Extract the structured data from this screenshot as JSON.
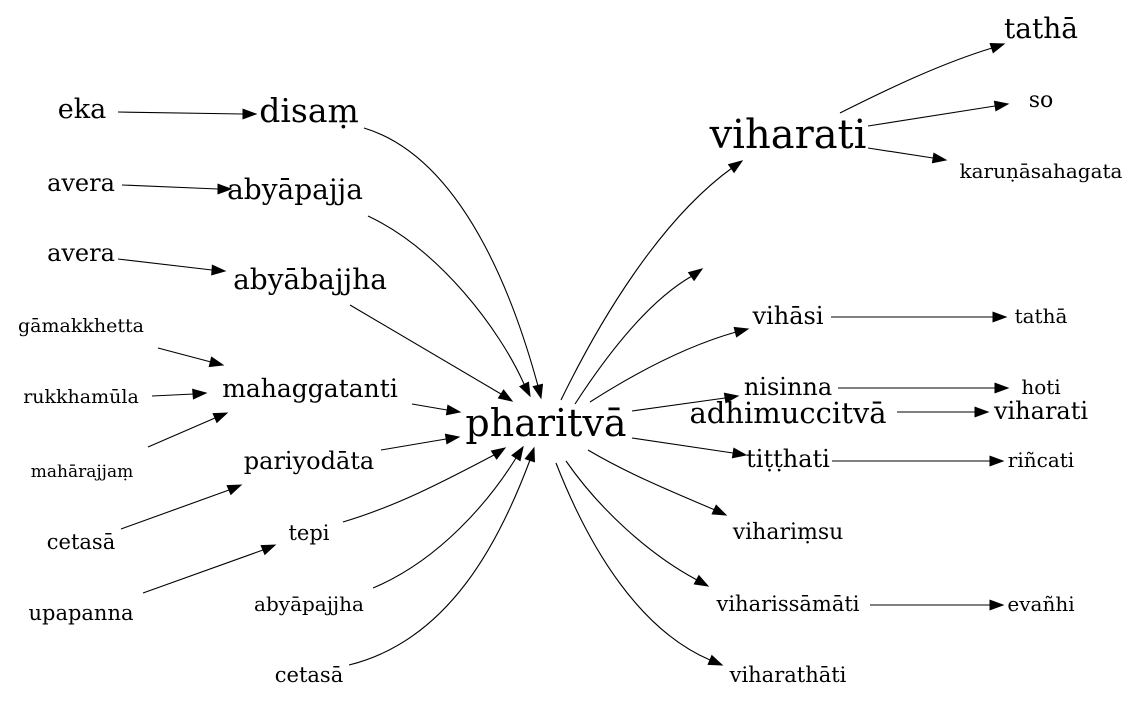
{
  "diagram": {
    "center": "pharitvā",
    "nodes": [
      {
        "id": "pharitva",
        "label": "pharitvā"
      },
      {
        "id": "eka",
        "label": "eka"
      },
      {
        "id": "disam",
        "label": "disaṃ"
      },
      {
        "id": "avera1",
        "label": "avera"
      },
      {
        "id": "abyapajja",
        "label": "abyāpajja"
      },
      {
        "id": "avera2",
        "label": "avera"
      },
      {
        "id": "abyabajjha",
        "label": "abyābajjha"
      },
      {
        "id": "gamakkhetta",
        "label": "gāmakkhetta"
      },
      {
        "id": "rukkhamula",
        "label": "rukkhamūla"
      },
      {
        "id": "maharajjam",
        "label": "mahārajjaṃ"
      },
      {
        "id": "mahaggatanti",
        "label": "mahaggatanti"
      },
      {
        "id": "pariyodata",
        "label": "pariyodāta"
      },
      {
        "id": "cetasa1",
        "label": "cetasā"
      },
      {
        "id": "tepi",
        "label": "tepi"
      },
      {
        "id": "upapanna",
        "label": "upapanna"
      },
      {
        "id": "abyapajjha",
        "label": "abyāpajjha"
      },
      {
        "id": "cetasa2",
        "label": "cetasā"
      },
      {
        "id": "viharati1",
        "label": "viharati"
      },
      {
        "id": "tatha1",
        "label": "tathā"
      },
      {
        "id": "so",
        "label": "so"
      },
      {
        "id": "karuna",
        "label": "karuṇāsahagata"
      },
      {
        "id": "adhimuccitva",
        "label": "adhimuccitvā"
      },
      {
        "id": "viharati2",
        "label": "viharati"
      },
      {
        "id": "vihasi",
        "label": "vihāsi"
      },
      {
        "id": "tatha2",
        "label": "tathā"
      },
      {
        "id": "nisinna",
        "label": "nisinna"
      },
      {
        "id": "hoti",
        "label": "hoti"
      },
      {
        "id": "titthati",
        "label": "tiṭṭhati"
      },
      {
        "id": "rincati",
        "label": "riñcati"
      },
      {
        "id": "viharimsu",
        "label": "vihariṃsu"
      },
      {
        "id": "viharissamati",
        "label": "viharissāmāti"
      },
      {
        "id": "evanhi",
        "label": "evañhi"
      },
      {
        "id": "viharathati",
        "label": "viharathāti"
      }
    ],
    "edges": [
      {
        "from": "eka",
        "to": "disam"
      },
      {
        "from": "avera1",
        "to": "abyapajja"
      },
      {
        "from": "avera2",
        "to": "abyabajjha"
      },
      {
        "from": "gamakkhetta",
        "to": "mahaggatanti"
      },
      {
        "from": "rukkhamula",
        "to": "mahaggatanti"
      },
      {
        "from": "maharajjam",
        "to": "mahaggatanti"
      },
      {
        "from": "cetasa1",
        "to": "pariyodata"
      },
      {
        "from": "upapanna",
        "to": "tepi"
      },
      {
        "from": "disam",
        "to": "pharitva"
      },
      {
        "from": "abyapajja",
        "to": "pharitva"
      },
      {
        "from": "abyabajjha",
        "to": "pharitva"
      },
      {
        "from": "mahaggatanti",
        "to": "pharitva"
      },
      {
        "from": "pariyodata",
        "to": "pharitva"
      },
      {
        "from": "tepi",
        "to": "pharitva"
      },
      {
        "from": "abyapajjha",
        "to": "pharitva"
      },
      {
        "from": "cetasa2",
        "to": "pharitva"
      },
      {
        "from": "pharitva",
        "to": "viharati1"
      },
      {
        "from": "pharitva",
        "to": "adhimuccitva"
      },
      {
        "from": "pharitva",
        "to": "vihasi"
      },
      {
        "from": "pharitva",
        "to": "nisinna"
      },
      {
        "from": "pharitva",
        "to": "titthati"
      },
      {
        "from": "pharitva",
        "to": "viharimsu"
      },
      {
        "from": "pharitva",
        "to": "viharissamati"
      },
      {
        "from": "pharitva",
        "to": "viharathati"
      },
      {
        "from": "viharati1",
        "to": "tatha1"
      },
      {
        "from": "viharati1",
        "to": "so"
      },
      {
        "from": "viharati1",
        "to": "karuna"
      },
      {
        "from": "adhimuccitva",
        "to": "viharati2"
      },
      {
        "from": "vihasi",
        "to": "tatha2"
      },
      {
        "from": "nisinna",
        "to": "hoti"
      },
      {
        "from": "titthati",
        "to": "rincati"
      },
      {
        "from": "viharissamati",
        "to": "evanhi"
      }
    ]
  }
}
